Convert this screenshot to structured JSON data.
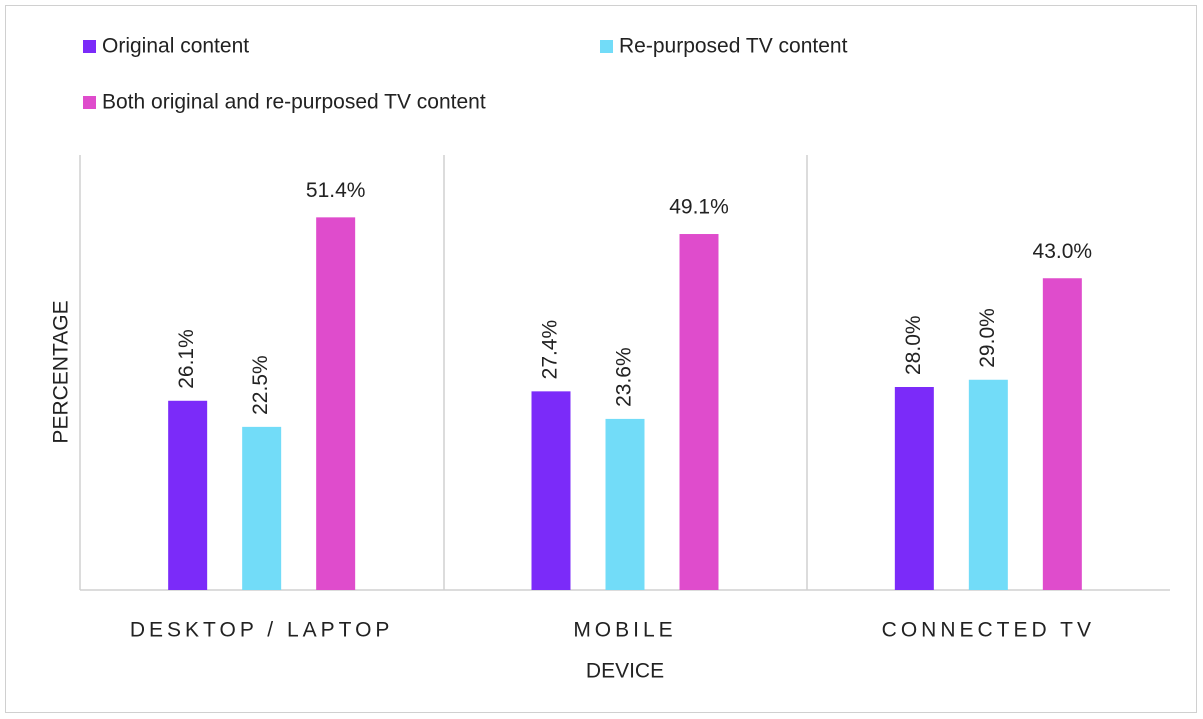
{
  "chart_data": {
    "type": "bar",
    "categories": [
      "DESKTOP / LAPTOP",
      "MOBILE",
      "CONNECTED TV"
    ],
    "x_label": "DEVICE",
    "y_label": "PERCENTAGE",
    "ylim": [
      0,
      60
    ],
    "series": [
      {
        "name": "Original content",
        "color": "#7b2bf9",
        "values": [
          26.1,
          27.4,
          28.0
        ],
        "value_labels": [
          "26.1%",
          "27.4%",
          "28.0%"
        ]
      },
      {
        "name": "Re-purposed TV content",
        "color": "#72dcf8",
        "values": [
          22.5,
          23.6,
          29.0
        ],
        "value_labels": [
          "22.5%",
          "23.6%",
          "29.0%"
        ]
      },
      {
        "name": "Both original and re-purposed TV content",
        "color": "#df4ccc",
        "values": [
          51.4,
          49.1,
          43.0
        ],
        "value_labels": [
          "51.4%",
          "49.1%",
          "43.0%"
        ]
      }
    ]
  }
}
